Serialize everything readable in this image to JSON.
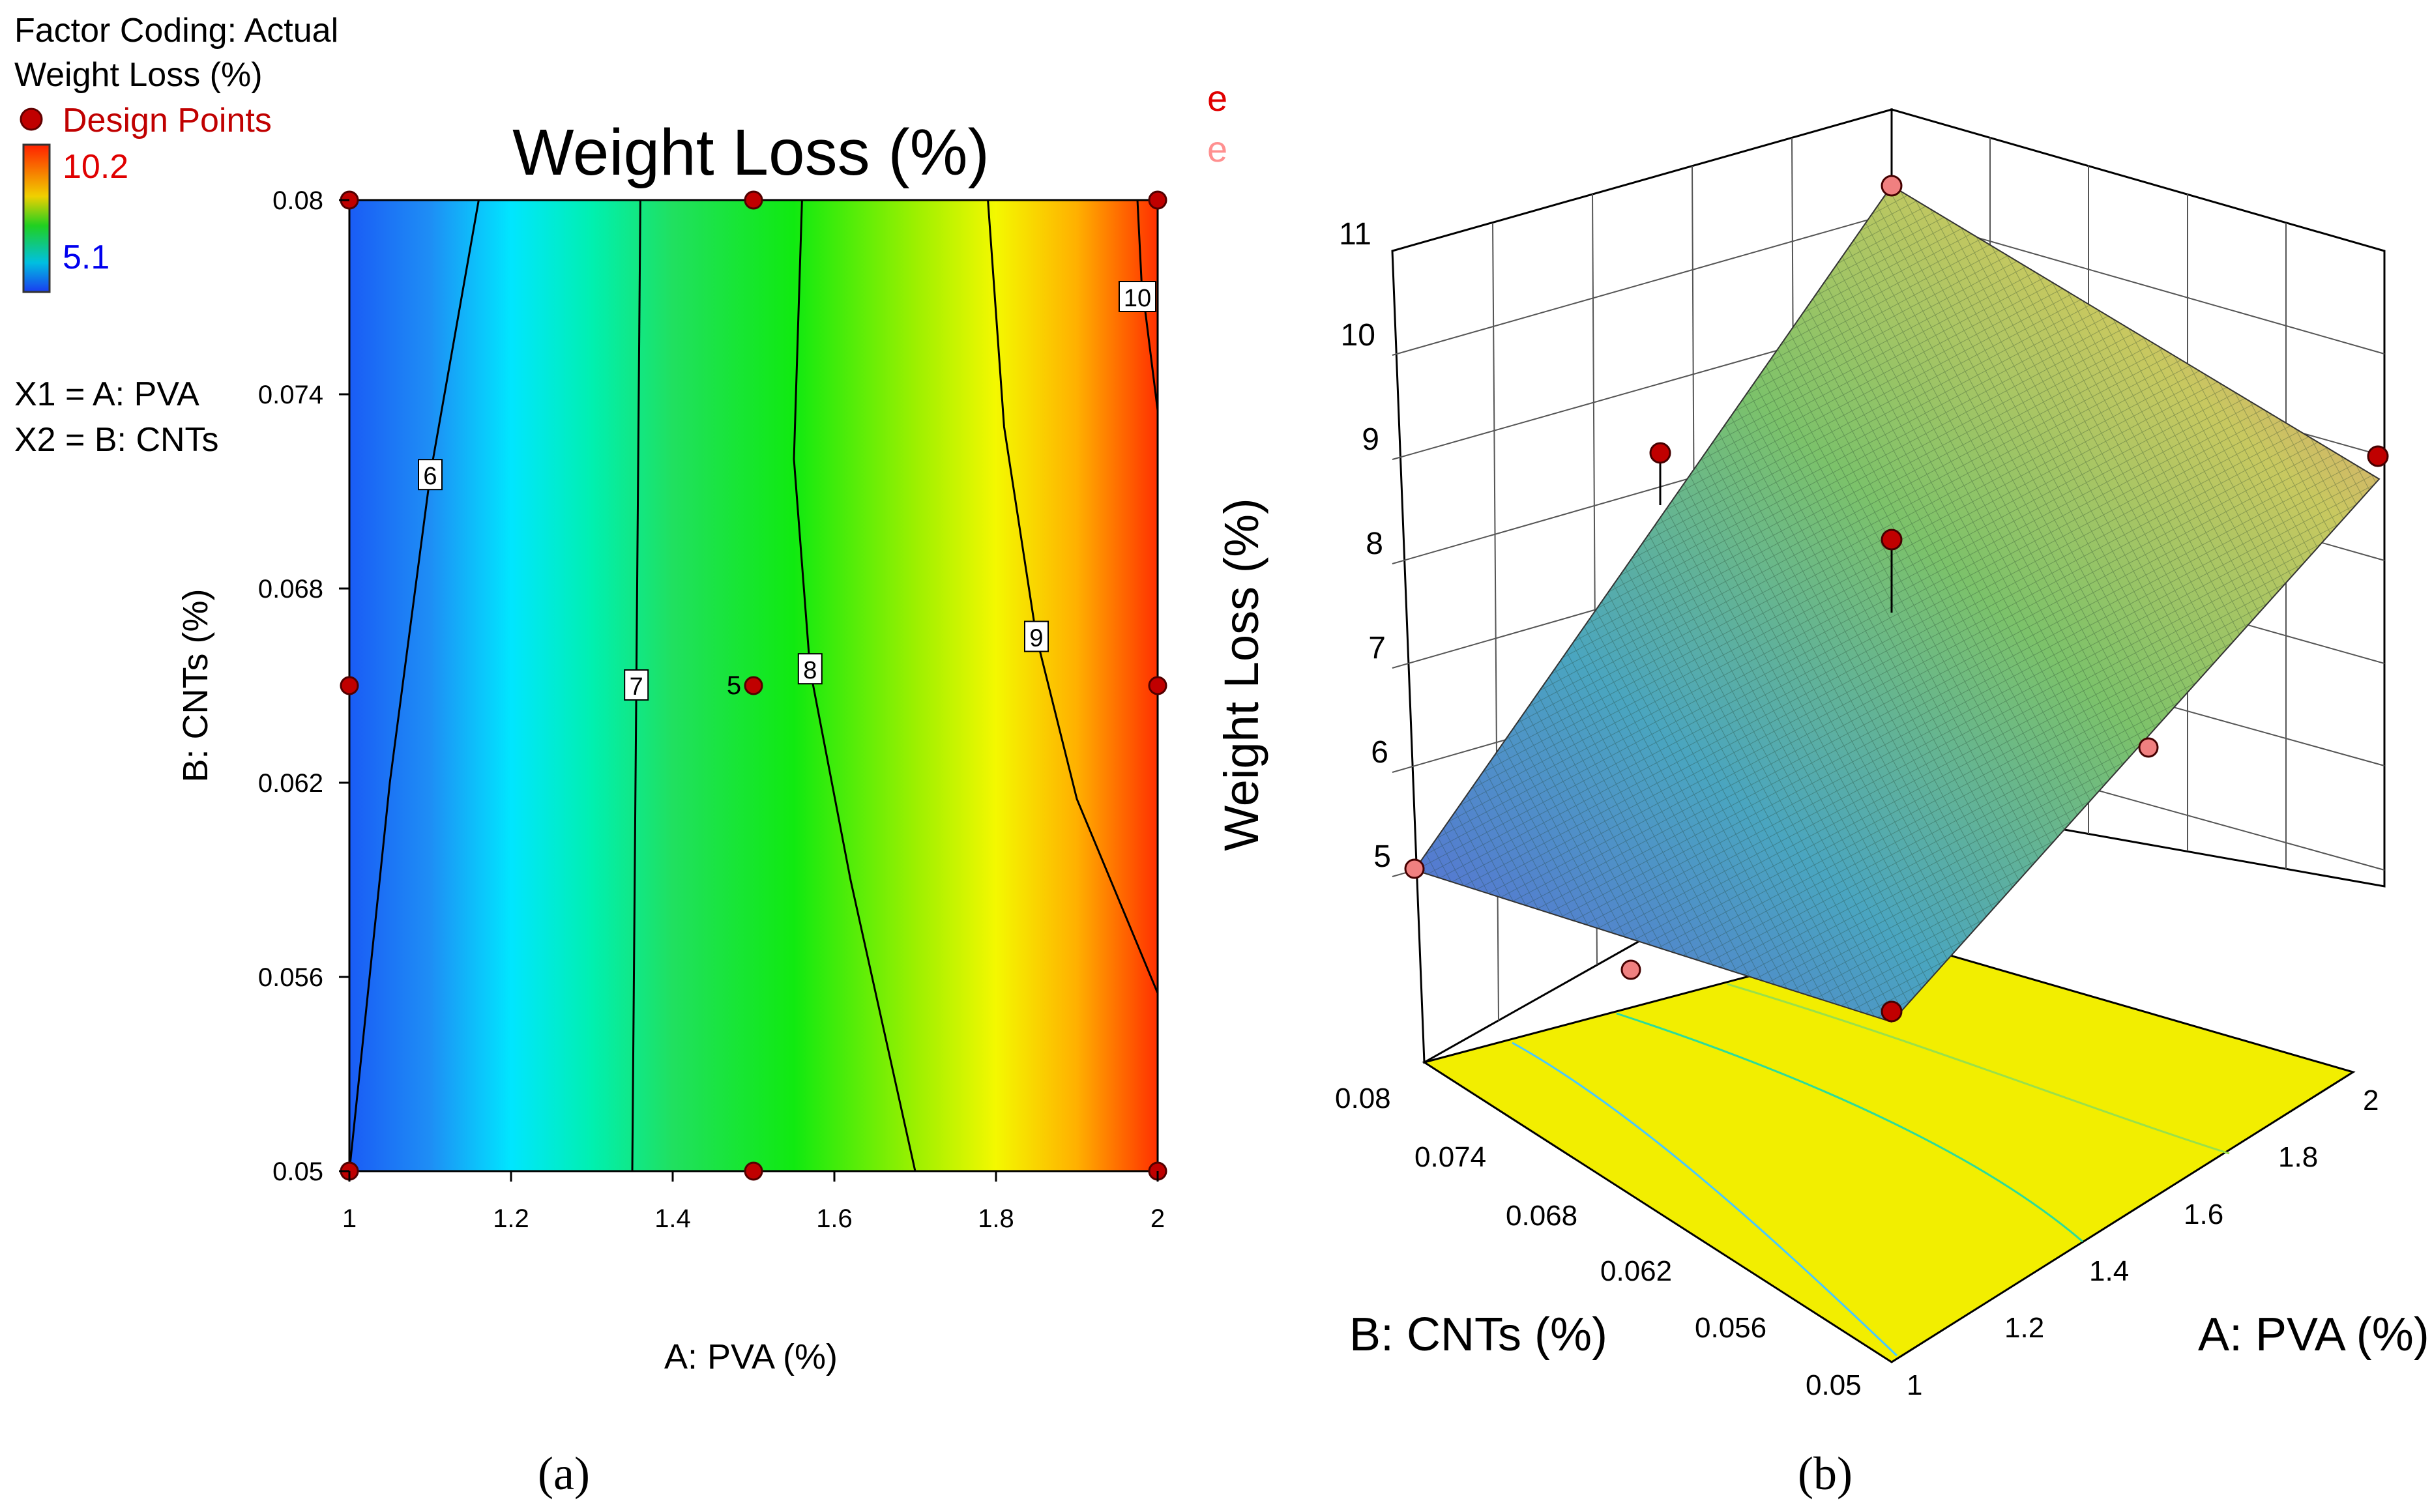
{
  "header": {
    "factor_coding": "Factor Coding: Actual",
    "response": "Weight Loss (%)",
    "design_points": "Design Points",
    "scale_max": "10.2",
    "scale_min": "5.1",
    "x1_def": "X1 = A: PVA",
    "x2_def": "X2 = B: CNTs",
    "stray_glyph_1": "e",
    "stray_glyph_2": "e"
  },
  "colors": {
    "design_point": "#c00000",
    "scale_max_text": "#e00000",
    "scale_min_text": "#0000ee",
    "surface_high": "#f08080",
    "surface_low": "#5f6bd6",
    "floor": "#f2ee00"
  },
  "chart_data": [
    {
      "type": "contour",
      "panel_label": "(a)",
      "title": "Weight Loss (%)",
      "xlabel": "A: PVA (%)",
      "ylabel": "B: CNTs (%)",
      "xlim": [
        1,
        2
      ],
      "ylim": [
        0.05,
        0.08
      ],
      "x_ticks": [
        "1",
        "1.2",
        "1.4",
        "1.6",
        "1.8",
        "2"
      ],
      "y_ticks": [
        "0.05",
        "0.056",
        "0.062",
        "0.068",
        "0.074",
        "0.08"
      ],
      "color_range": [
        5.1,
        10.2
      ],
      "contours": [
        {
          "level": 6,
          "label": "6",
          "points": [
            [
              1.0,
              0.05
            ],
            [
              1.05,
              0.062
            ],
            [
              1.1,
              0.0715
            ],
            [
              1.16,
              0.08
            ]
          ]
        },
        {
          "level": 7,
          "label": "7",
          "points": [
            [
              1.35,
              0.05
            ],
            [
              1.355,
              0.065
            ],
            [
              1.36,
              0.08
            ]
          ]
        },
        {
          "level": 8,
          "label": "8",
          "points": [
            [
              1.7,
              0.05
            ],
            [
              1.62,
              0.059
            ],
            [
              1.57,
              0.0655
            ],
            [
              1.55,
              0.072
            ],
            [
              1.56,
              0.08
            ]
          ]
        },
        {
          "level": 9,
          "label": "9",
          "points": [
            [
              2.0,
              0.0555
            ],
            [
              1.9,
              0.0615
            ],
            [
              1.85,
              0.0665
            ],
            [
              1.81,
              0.073
            ],
            [
              1.79,
              0.08
            ]
          ]
        },
        {
          "level": 10,
          "label": "10",
          "points": [
            [
              2.0,
              0.0735
            ],
            [
              1.98,
              0.0775
            ],
            [
              1.975,
              0.08
            ]
          ]
        }
      ],
      "design_points": [
        {
          "x": 1.0,
          "y": 0.08
        },
        {
          "x": 1.5,
          "y": 0.08
        },
        {
          "x": 2.0,
          "y": 0.08
        },
        {
          "x": 1.0,
          "y": 0.065
        },
        {
          "x": 1.5,
          "y": 0.065
        },
        {
          "x": 2.0,
          "y": 0.065
        },
        {
          "x": 1.0,
          "y": 0.05
        },
        {
          "x": 1.5,
          "y": 0.05
        },
        {
          "x": 2.0,
          "y": 0.05
        }
      ],
      "center_point_count": "5"
    },
    {
      "type": "surface",
      "panel_label": "(b)",
      "zlabel": "Weight Loss (%)",
      "xlabel": "A: PVA (%)",
      "ylabel": "B: CNTs (%)",
      "xlim": [
        1,
        2
      ],
      "ylim": [
        0.05,
        0.08
      ],
      "zlim": [
        5,
        11
      ],
      "x_ticks": [
        "1",
        "1.2",
        "1.4",
        "1.6",
        "1.8",
        "2"
      ],
      "y_ticks": [
        "0.05",
        "0.056",
        "0.062",
        "0.068",
        "0.074",
        "0.08"
      ],
      "z_ticks": [
        "5",
        "6",
        "7",
        "8",
        "9",
        "10",
        "11"
      ],
      "surface_corners": [
        {
          "x": 1,
          "y": 0.08,
          "z": 5.0
        },
        {
          "x": 1,
          "y": 0.05,
          "z": 5.1
        },
        {
          "x": 2,
          "y": 0.05,
          "z": 9.0
        },
        {
          "x": 2,
          "y": 0.08,
          "z": 10.2
        }
      ],
      "design_points": [
        {
          "x": 1,
          "y": 0.08,
          "z": 5.0
        },
        {
          "x": 1,
          "y": 0.05,
          "z": 5.1
        },
        {
          "x": 1.5,
          "y": 0.08,
          "z": 6.2
        },
        {
          "x": 1.5,
          "y": 0.05,
          "z": 9.0
        },
        {
          "x": 1.5,
          "y": 0.065,
          "z": 8.0
        },
        {
          "x": 2,
          "y": 0.05,
          "z": 9.0
        },
        {
          "x": 2,
          "y": 0.08,
          "z": 10.3
        },
        {
          "x": 2,
          "y": 0.065,
          "z": 6.1
        }
      ]
    }
  ]
}
